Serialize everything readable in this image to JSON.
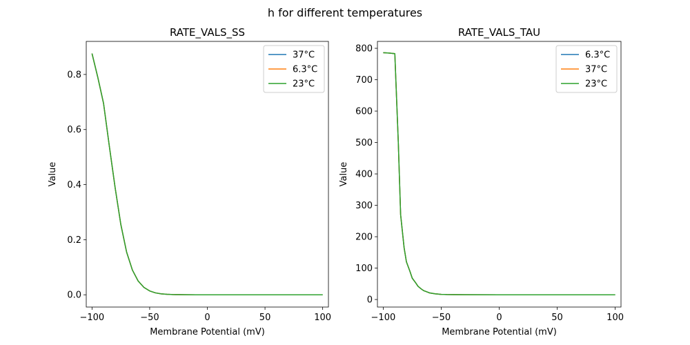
{
  "figure": {
    "suptitle": "h for different temperatures"
  },
  "chart_data": [
    {
      "type": "line",
      "title": "RATE_VALS_SS",
      "xlabel": "Membrane Potential (mV)",
      "ylabel": "Value",
      "xlim": [
        -105,
        105
      ],
      "ylim": [
        -0.0445,
        0.92
      ],
      "xticks": [
        -100,
        -50,
        0,
        50,
        100
      ],
      "xtick_labels": [
        "−100",
        "−50",
        "0",
        "50",
        "100"
      ],
      "yticks": [
        0.0,
        0.2,
        0.4,
        0.6,
        0.8
      ],
      "ytick_labels": [
        "0.0",
        "0.2",
        "0.4",
        "0.6",
        "0.8"
      ],
      "legend_position": "top-right",
      "x": [
        -100,
        -95,
        -90,
        -85,
        -80,
        -75,
        -70,
        -65,
        -60,
        -55,
        -50,
        -45,
        -40,
        -35,
        -30,
        -25,
        -20,
        -10,
        0,
        25,
        50,
        75,
        100
      ],
      "series": [
        {
          "name": "37°C",
          "color": "#1f77b4",
          "values": [
            0.876,
            0.79,
            0.695,
            0.54,
            0.39,
            0.255,
            0.155,
            0.09,
            0.05,
            0.027,
            0.014,
            0.007,
            0.0035,
            0.0018,
            0.0009,
            0.0005,
            0.0002,
            0.0001,
            0.0,
            0.0,
            0.0,
            0.0,
            0.0
          ]
        },
        {
          "name": "6.3°C",
          "color": "#ff7f0e",
          "values": [
            0.876,
            0.79,
            0.695,
            0.54,
            0.39,
            0.255,
            0.155,
            0.09,
            0.05,
            0.027,
            0.014,
            0.007,
            0.0035,
            0.0018,
            0.0009,
            0.0005,
            0.0002,
            0.0001,
            0.0,
            0.0,
            0.0,
            0.0,
            0.0
          ]
        },
        {
          "name": "23°C",
          "color": "#2ca02c",
          "values": [
            0.876,
            0.79,
            0.695,
            0.54,
            0.39,
            0.255,
            0.155,
            0.09,
            0.05,
            0.027,
            0.014,
            0.007,
            0.0035,
            0.0018,
            0.0009,
            0.0005,
            0.0002,
            0.0001,
            0.0,
            0.0,
            0.0,
            0.0,
            0.0
          ]
        }
      ]
    },
    {
      "type": "line",
      "title": "RATE_VALS_TAU",
      "xlabel": "Membrane Potential (mV)",
      "ylabel": "Value",
      "xlim": [
        -105,
        105
      ],
      "ylim": [
        -24,
        822
      ],
      "xticks": [
        -100,
        -50,
        0,
        50,
        100
      ],
      "xtick_labels": [
        "−100",
        "−50",
        "0",
        "50",
        "100"
      ],
      "yticks": [
        0,
        100,
        200,
        300,
        400,
        500,
        600,
        700,
        800
      ],
      "ytick_labels": [
        "0",
        "100",
        "200",
        "300",
        "400",
        "500",
        "600",
        "700",
        "800"
      ],
      "legend_position": "top-right",
      "x": [
        -100,
        -95,
        -90,
        -87,
        -85,
        -82,
        -80,
        -77,
        -75,
        -72,
        -70,
        -67,
        -65,
        -62,
        -60,
        -55,
        -50,
        -45,
        -40,
        -30,
        0,
        50,
        100
      ],
      "series": [
        {
          "name": "6.3°C",
          "color": "#1f77b4",
          "values": [
            786,
            785,
            783,
            500,
            270,
            165,
            120,
            90,
            68,
            53,
            42,
            33,
            28,
            24,
            21,
            18,
            16.5,
            15.8,
            15.5,
            15.2,
            15,
            15,
            15
          ]
        },
        {
          "name": "37°C",
          "color": "#ff7f0e",
          "values": [
            786,
            785,
            783,
            500,
            270,
            165,
            120,
            90,
            68,
            53,
            42,
            33,
            28,
            24,
            21,
            18,
            16.5,
            15.8,
            15.5,
            15.2,
            15,
            15,
            15
          ]
        },
        {
          "name": "23°C",
          "color": "#2ca02c",
          "values": [
            786,
            785,
            783,
            500,
            270,
            165,
            120,
            90,
            68,
            53,
            42,
            33,
            28,
            24,
            21,
            18,
            16.5,
            15.8,
            15.5,
            15.2,
            15,
            15,
            15
          ]
        }
      ]
    }
  ]
}
